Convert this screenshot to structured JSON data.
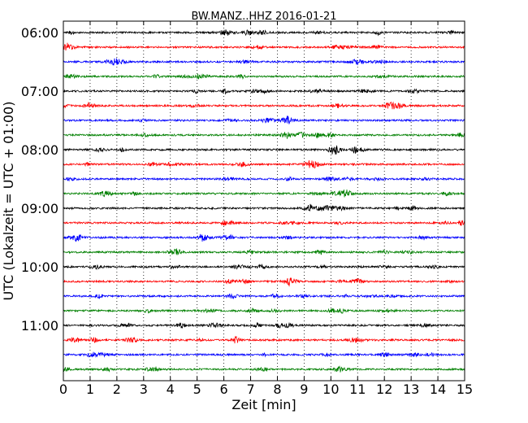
{
  "chart_data": {
    "type": "line",
    "title": "BW.MANZ..HHZ 2016-01-21",
    "xlabel": "Zeit  [min]",
    "ylabel": "UTC (Lokalzeit = UTC + 01:00)",
    "xlim": [
      0,
      15
    ],
    "x_ticks": [
      "0",
      "1",
      "2",
      "3",
      "4",
      "5",
      "6",
      "7",
      "8",
      "9",
      "10",
      "11",
      "12",
      "13",
      "14",
      "15"
    ],
    "y_ticks": [
      "06:00",
      "07:00",
      "08:00",
      "09:00",
      "10:00",
      "11:00"
    ],
    "trace_start_times": [
      "06:00",
      "06:15",
      "06:30",
      "06:45",
      "07:00",
      "07:15",
      "07:30",
      "07:45",
      "08:00",
      "08:15",
      "08:30",
      "08:45",
      "09:00",
      "09:15",
      "09:30",
      "09:45",
      "10:00",
      "10:15",
      "10:30",
      "10:45",
      "11:00",
      "11:15",
      "11:30",
      "11:45"
    ],
    "trace_colors": [
      "#000000",
      "#ff0000",
      "#0000ff",
      "#008000"
    ],
    "grid": "vertical dotted at each minute",
    "legend": "none"
  }
}
